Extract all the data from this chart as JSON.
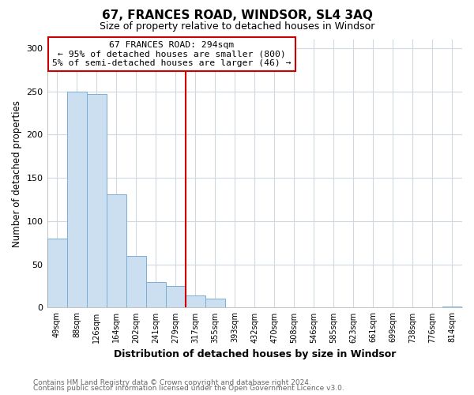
{
  "title": "67, FRANCES ROAD, WINDSOR, SL4 3AQ",
  "subtitle": "Size of property relative to detached houses in Windsor",
  "xlabel": "Distribution of detached houses by size in Windsor",
  "ylabel": "Number of detached properties",
  "categories": [
    "49sqm",
    "88sqm",
    "126sqm",
    "164sqm",
    "202sqm",
    "241sqm",
    "279sqm",
    "317sqm",
    "355sqm",
    "393sqm",
    "432sqm",
    "470sqm",
    "508sqm",
    "546sqm",
    "585sqm",
    "623sqm",
    "661sqm",
    "699sqm",
    "738sqm",
    "776sqm",
    "814sqm"
  ],
  "values": [
    80,
    250,
    247,
    131,
    60,
    30,
    25,
    14,
    10,
    0,
    0,
    0,
    0,
    0,
    0,
    0,
    0,
    0,
    0,
    0,
    1
  ],
  "bar_color": "#ccdff0",
  "bar_edgecolor": "#7bafd4",
  "vline_x": 6.5,
  "vline_color": "#cc0000",
  "annotation_title": "67 FRANCES ROAD: 294sqm",
  "annotation_line1": "← 95% of detached houses are smaller (800)",
  "annotation_line2": "5% of semi-detached houses are larger (46) →",
  "annotation_box_edgecolor": "#cc0000",
  "ylim": [
    0,
    310
  ],
  "yticks": [
    0,
    50,
    100,
    150,
    200,
    250,
    300
  ],
  "footer1": "Contains HM Land Registry data © Crown copyright and database right 2024.",
  "footer2": "Contains public sector information licensed under the Open Government Licence v3.0.",
  "background_color": "#ffffff",
  "plot_bg_color": "#ffffff",
  "grid_color": "#d0d8e0"
}
